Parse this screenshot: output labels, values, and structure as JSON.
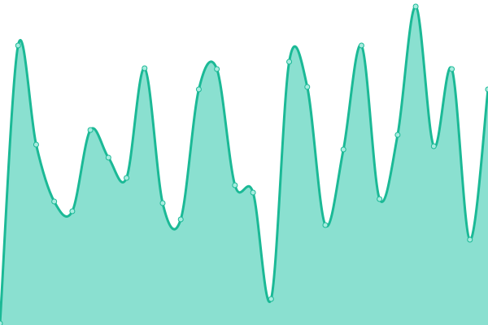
{
  "chart_data": {
    "type": "area",
    "title": "",
    "xlabel": "",
    "ylabel": "",
    "x": [
      0,
      1,
      2,
      3,
      4,
      5,
      6,
      7,
      8,
      9,
      10,
      11,
      12,
      13,
      14,
      15,
      16,
      17,
      18,
      19,
      20,
      21,
      22,
      23,
      24,
      25,
      26,
      27
    ],
    "values": [
      2,
      344,
      222,
      152,
      140,
      240,
      206,
      181,
      316,
      150,
      130,
      290,
      315,
      172,
      163,
      32,
      324,
      293,
      123,
      216,
      344,
      155,
      234,
      392,
      220,
      315,
      105,
      290
    ],
    "ylim": [
      0,
      400
    ],
    "grid": false,
    "axes_visible": false,
    "colors": {
      "line": "#1bb996",
      "fill": "#8ae0d0",
      "marker_fill": "#a8ecdf"
    }
  }
}
